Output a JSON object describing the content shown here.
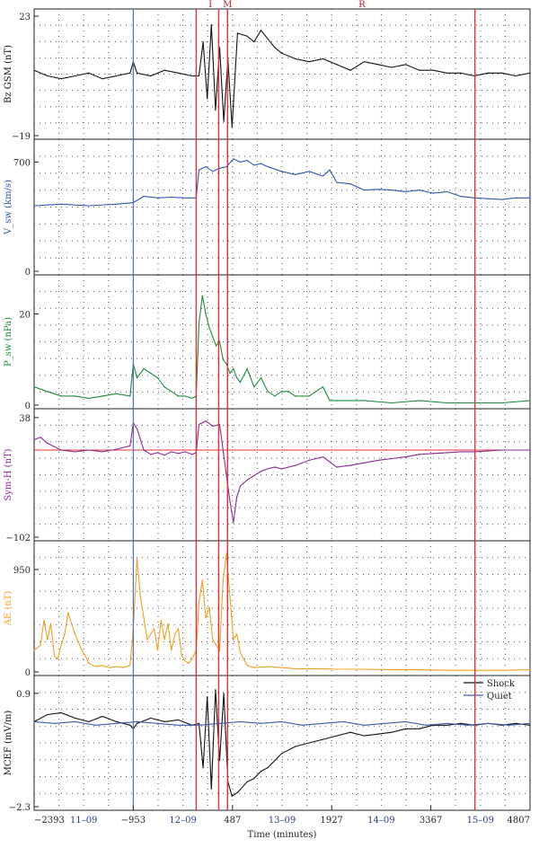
{
  "chart_data": {
    "type": "line",
    "xlabel": "Time (minutes)",
    "x_ticks": [
      -2393,
      -953,
      487,
      1927,
      3367,
      4807
    ],
    "xlim": [
      -2393,
      4807
    ],
    "date_labels": [
      {
        "label": "11–09",
        "x": -1673
      },
      {
        "label": "12–09",
        "x": -233
      },
      {
        "label": "13–09",
        "x": 1207
      },
      {
        "label": "14–09",
        "x": 2647
      },
      {
        "label": "15–09",
        "x": 4087
      }
    ],
    "event_labels": [
      {
        "label": "I",
        "x": 167
      },
      {
        "label": "M",
        "x": 415
      },
      {
        "label": "R",
        "x": 2367
      }
    ],
    "blue_vlines": [
      -953
    ],
    "red_vlines": [
      -40,
      287,
      415,
      4007
    ],
    "colors": {
      "bz": "#111111",
      "vsw": "#2f55b0",
      "psw": "#1a8a3a",
      "symh": "#8a2a8f",
      "ae": "#f0a020",
      "mcef_shock": "#111111",
      "mcef_quiet": "#3a5cb0",
      "red": "#e0303a",
      "blue": "#4a6fd0"
    },
    "panels": [
      {
        "key": "bz",
        "ylabel": "Bz GSM (nT)",
        "ylim": [
          -19,
          23
        ],
        "yticks": [
          "23",
          "−19"
        ],
        "ytick_values": [
          23,
          -19
        ],
        "series": [
          {
            "x": [
              -2393,
              -2200,
              -2000,
              -1800,
              -1600,
              -1400,
              -1200,
              -1000,
              -953,
              -900,
              -700,
              -500,
              -300,
              -100,
              0,
              60,
              120,
              180,
              240,
              300,
              360,
              420,
              480,
              560,
              700,
              800,
              900,
              1000,
              1100,
              1200,
              1400,
              1600,
              1800,
              2000,
              2200,
              2400,
              2600,
              2800,
              3000,
              3200,
              3400,
              3600,
              3800,
              4000,
              4200,
              4400,
              4600,
              4807
            ],
            "y": [
              4,
              2,
              1,
              2,
              3,
              1,
              2,
              3,
              7,
              3,
              2,
              4,
              3,
              2,
              2,
              14,
              -6,
              20,
              -10,
              12,
              -14,
              8,
              -16,
              17,
              16,
              14,
              18,
              15,
              12,
              10,
              8,
              7,
              8,
              6,
              4,
              7,
              6,
              5,
              6,
              4,
              4,
              3,
              3,
              2,
              3,
              3,
              2,
              3
            ]
          }
        ]
      },
      {
        "key": "vsw",
        "ylabel": "V_sw (km/s)",
        "ylim": [
          0,
          800
        ],
        "yticks": [
          "0",
          "700"
        ],
        "ytick_values": [
          0,
          700
        ],
        "series": [
          {
            "x": [
              -2393,
              -2000,
              -1600,
              -1200,
              -953,
              -800,
              -600,
              -400,
              -200,
              -40,
              0,
              100,
              200,
              300,
              400,
              500,
              600,
              700,
              800,
              900,
              1000,
              1200,
              1400,
              1600,
              1800,
              1900,
              2000,
              2200,
              2400,
              2600,
              2800,
              3000,
              3200,
              3400,
              3600,
              3800,
              4000,
              4200,
              4400,
              4600,
              4807
            ],
            "y": [
              420,
              430,
              420,
              430,
              440,
              480,
              470,
              475,
              470,
              470,
              650,
              670,
              640,
              660,
              670,
              720,
              700,
              710,
              680,
              690,
              670,
              640,
              620,
              640,
              610,
              650,
              570,
              560,
              520,
              525,
              520,
              510,
              520,
              500,
              510,
              480,
              470,
              465,
              460,
              470,
              470
            ]
          }
        ]
      },
      {
        "key": "psw",
        "ylabel": "P_sw (nPa)",
        "ylim": [
          0,
          27
        ],
        "yticks": [
          "0",
          "20"
        ],
        "ytick_values": [
          0,
          20
        ],
        "series": [
          {
            "x": [
              -2393,
              -2200,
              -2000,
              -1800,
              -1600,
              -1400,
              -1200,
              -1000,
              -953,
              -900,
              -800,
              -700,
              -600,
              -500,
              -400,
              -300,
              -200,
              -100,
              -40,
              0,
              50,
              100,
              150,
              200,
              250,
              300,
              350,
              400,
              450,
              500,
              550,
              600,
              700,
              800,
              900,
              1000,
              1100,
              1200,
              1300,
              1400,
              1500,
              1600,
              1700,
              1800,
              1900,
              2000,
              2400,
              2800,
              3200,
              3600,
              4000,
              4400,
              4807
            ],
            "y": [
              4,
              3,
              2,
              2,
              1.5,
              2,
              2.5,
              2,
              9,
              6,
              8,
              7,
              6,
              4,
              3,
              2,
              2,
              1.5,
              2,
              18,
              24,
              20,
              17,
              15,
              13,
              14,
              10,
              9,
              7,
              8,
              6,
              5,
              8,
              4,
              6,
              3,
              2,
              3,
              3,
              2,
              2,
              2,
              3,
              4,
              1,
              1,
              1,
              0.5,
              1,
              0.5,
              0.5,
              0.5,
              1
            ]
          }
        ]
      },
      {
        "key": "symh",
        "ylabel": "Sym-H (nT)",
        "ylim": [
          -102,
          40
        ],
        "yticks": [
          "38",
          "−102"
        ],
        "ytick_values": [
          38,
          -102
        ],
        "series": [
          {
            "x": [
              -2393,
              -2300,
              -2200,
              -2000,
              -1800,
              -1600,
              -1400,
              -1200,
              -1000,
              -953,
              -900,
              -800,
              -700,
              -600,
              -500,
              -400,
              -300,
              -200,
              -100,
              -40,
              0,
              100,
              200,
              300,
              350,
              400,
              450,
              500,
              550,
              600,
              700,
              800,
              900,
              1000,
              1100,
              1200,
              1400,
              1600,
              1800,
              2000,
              2200,
              2400,
              2600,
              2800,
              3000,
              3200,
              3400,
              3600,
              3800,
              4000,
              4200,
              4400,
              4600,
              4807
            ],
            "y": [
              12,
              15,
              8,
              0,
              -2,
              0,
              -2,
              1,
              5,
              32,
              25,
              0,
              -5,
              -3,
              -6,
              -2,
              -4,
              -2,
              -5,
              -3,
              30,
              34,
              28,
              30,
              0,
              -30,
              -60,
              -85,
              -55,
              -42,
              -35,
              -30,
              -25,
              -22,
              -20,
              -22,
              -18,
              -12,
              -8,
              -20,
              -18,
              -15,
              -12,
              -10,
              -8,
              -5,
              -4,
              -3,
              -2,
              -2,
              -1,
              0,
              0,
              0
            ]
          }
        ]
      },
      {
        "key": "ae",
        "ylabel": "AE (nT)",
        "ylim": [
          0,
          1150
        ],
        "yticks": [
          "0",
          "950"
        ],
        "ytick_values": [
          0,
          950
        ],
        "series": [
          {
            "x": [
              -2393,
              -2300,
              -2250,
              -2200,
              -2150,
              -2100,
              -2050,
              -2000,
              -1950,
              -1900,
              -1850,
              -1800,
              -1700,
              -1650,
              -1600,
              -1500,
              -1400,
              -1300,
              -1200,
              -1100,
              -1000,
              -953,
              -900,
              -850,
              -800,
              -750,
              -700,
              -650,
              -600,
              -550,
              -500,
              -450,
              -400,
              -350,
              -300,
              -250,
              -200,
              -150,
              -100,
              -40,
              0,
              50,
              100,
              150,
              200,
              250,
              300,
              350,
              400,
              450,
              500,
              550,
              600,
              650,
              700,
              800,
              1000,
              1200,
              1400,
              1600,
              1800,
              2000,
              2400,
              2800,
              3200,
              3600,
              4000,
              4400,
              4807
            ],
            "y": [
              200,
              250,
              480,
              300,
              450,
              150,
              120,
              250,
              350,
              550,
              450,
              350,
              200,
              150,
              80,
              50,
              60,
              40,
              50,
              40,
              60,
              400,
              1050,
              700,
              500,
              300,
              350,
              400,
              200,
              480,
              300,
              450,
              200,
              350,
              400,
              150,
              100,
              80,
              120,
              200,
              650,
              850,
              500,
              600,
              300,
              250,
              200,
              850,
              1100,
              700,
              300,
              350,
              180,
              120,
              60,
              40,
              50,
              40,
              30,
              30,
              30,
              25,
              25,
              20,
              20,
              15,
              15,
              15,
              20
            ]
          }
        ]
      },
      {
        "key": "mcef",
        "ylabel": "MCEF (mV/m)",
        "ylim": [
          -2.3,
          1.2
        ],
        "yticks": [
          "0.9",
          "−2.3"
        ],
        "ytick_values": [
          0.9,
          -2.3
        ],
        "legend": [
          "Shock",
          "Quiet"
        ],
        "series": [
          {
            "name": "Shock",
            "x": [
              -2393,
              -2200,
              -2000,
              -1800,
              -1600,
              -1400,
              -1200,
              -1000,
              -953,
              -900,
              -700,
              -500,
              -300,
              -100,
              0,
              60,
              120,
              180,
              240,
              300,
              360,
              420,
              480,
              560,
              700,
              800,
              900,
              1000,
              1100,
              1200,
              1400,
              1600,
              1800,
              2000,
              2200,
              2400,
              2600,
              2800,
              3000,
              3200,
              3400,
              3600,
              3800,
              4000,
              4200,
              4400,
              4600,
              4807
            ],
            "y": [
              0.1,
              0.3,
              0.35,
              0.2,
              0.1,
              0.25,
              0.1,
              0.0,
              -0.1,
              0.05,
              0.2,
              0.1,
              0.15,
              0.0,
              0.05,
              -1.2,
              0.8,
              -1.8,
              1.0,
              -1.0,
              0.9,
              -1.6,
              -2.0,
              -1.9,
              -1.6,
              -1.5,
              -1.3,
              -1.2,
              -1.0,
              -0.8,
              -0.6,
              -0.5,
              -0.4,
              -0.3,
              -0.2,
              -0.3,
              -0.25,
              -0.2,
              -0.1,
              -0.1,
              0.0,
              0.0,
              0.05,
              0.0,
              0.05,
              0.0,
              0.05,
              0.0
            ]
          },
          {
            "name": "Quiet",
            "x": [
              -2393,
              -2100,
              -1800,
              -1500,
              -1200,
              -900,
              -600,
              -300,
              0,
              300,
              600,
              900,
              1200,
              1500,
              1800,
              2100,
              2400,
              2700,
              3000,
              3300,
              3600,
              3900,
              4200,
              4500,
              4807
            ],
            "y": [
              0.1,
              0.05,
              0.1,
              0.0,
              0.05,
              0.1,
              0.05,
              0.0,
              0.0,
              0.05,
              0.1,
              0.05,
              0.1,
              0.0,
              0.05,
              0.1,
              0.0,
              0.05,
              0.1,
              0.0,
              0.05,
              0.0,
              0.05,
              0.0,
              0.05
            ]
          }
        ]
      }
    ]
  }
}
